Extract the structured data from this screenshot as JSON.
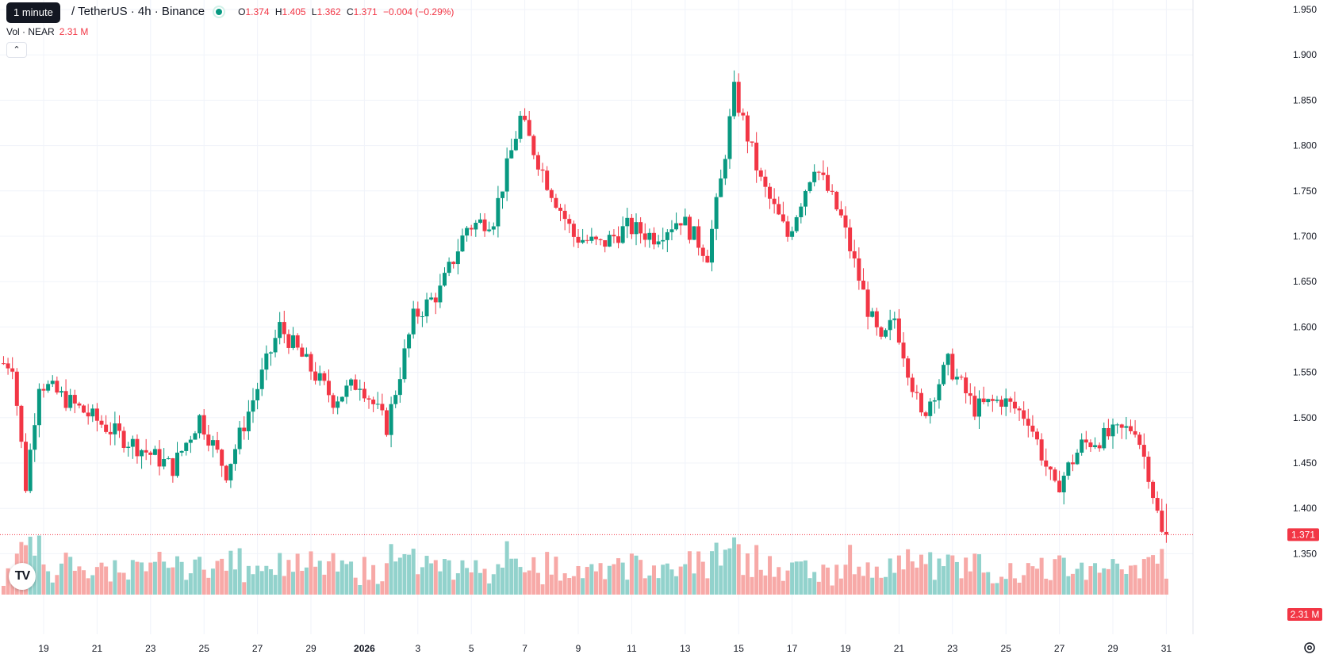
{
  "legend": {
    "interval_tooltip": "1 minute",
    "symbol": "/ TetherUS · 4h · Binance",
    "status_color": "#089981",
    "ohlc": {
      "o_label": "O",
      "o": "1.374",
      "h_label": "H",
      "h": "1.405",
      "l_label": "L",
      "l": "1.362",
      "c_label": "C",
      "c": "1.371",
      "change": "−0.004 (−0.29%)"
    },
    "volume_label": "Vol · NEAR",
    "volume_value": "2.31 M",
    "collapse_icon": "chevron-up-icon"
  },
  "badges": {
    "last_price": "1.371",
    "last_volume": "2.31 M"
  },
  "colors": {
    "up": "#089981",
    "down": "#f23645",
    "up_volume": "#92d2cc",
    "down_volume": "#f7a9a7",
    "grid": "#f0f3fa"
  },
  "icons": {
    "logo": "tradingview-logo-icon",
    "settings": "settings-gear-icon"
  },
  "chart_data": {
    "type": "candlestick",
    "interval": "4h",
    "y_axis": {
      "ticks": [
        "1.350",
        "1.400",
        "1.450",
        "1.500",
        "1.550",
        "1.600",
        "1.650",
        "1.700",
        "1.750",
        "1.800",
        "1.850",
        "1.900",
        "1.950"
      ],
      "range": [
        1.33,
        1.96
      ]
    },
    "x_axis": {
      "ticks": [
        "19",
        "21",
        "23",
        "25",
        "27",
        "29",
        "2026",
        "3",
        "5",
        "7",
        "9",
        "11",
        "13",
        "15",
        "17",
        "19",
        "21",
        "23",
        "25",
        "27",
        "29",
        "31"
      ],
      "bold_tick": "2026"
    },
    "last_price": 1.371,
    "grid": true,
    "key_points": [
      {
        "x": "Dec 18",
        "price": 1.56
      },
      {
        "x": "Dec 18",
        "price": 1.425
      },
      {
        "x": "Dec 19",
        "price": 1.54
      },
      {
        "x": "Dec 22",
        "price": 1.48
      },
      {
        "x": "Dec 24",
        "price": 1.445
      },
      {
        "x": "Dec 25",
        "price": 1.5
      },
      {
        "x": "Dec 26",
        "price": 1.44
      },
      {
        "x": "Dec 28",
        "price": 1.6
      },
      {
        "x": "Dec 30",
        "price": 1.52
      },
      {
        "x": "Dec 31",
        "price": 1.54
      },
      {
        "x": "Jan 1",
        "price": 1.49
      },
      {
        "x": "Jan 2",
        "price": 1.61
      },
      {
        "x": "Jan 3",
        "price": 1.64
      },
      {
        "x": "Jan 4",
        "price": 1.71
      },
      {
        "x": "Jan 5",
        "price": 1.72
      },
      {
        "x": "Jan 6",
        "price": 1.83
      },
      {
        "x": "Jan 7",
        "price": 1.76
      },
      {
        "x": "Jan 8",
        "price": 1.7
      },
      {
        "x": "Jan 9",
        "price": 1.69
      },
      {
        "x": "Jan 10",
        "price": 1.71
      },
      {
        "x": "Jan 11",
        "price": 1.7
      },
      {
        "x": "Jan 12",
        "price": 1.72
      },
      {
        "x": "Jan 13",
        "price": 1.68
      },
      {
        "x": "Jan 13",
        "price": 1.76
      },
      {
        "x": "Jan 14",
        "price": 1.86
      },
      {
        "x": "Jan 15",
        "price": 1.76
      },
      {
        "x": "Jan 16",
        "price": 1.7
      },
      {
        "x": "Jan 17",
        "price": 1.78
      },
      {
        "x": "Jan 18",
        "price": 1.72
      },
      {
        "x": "Jan 19",
        "price": 1.62
      },
      {
        "x": "Jan 19",
        "price": 1.58
      },
      {
        "x": "Jan 20",
        "price": 1.61
      },
      {
        "x": "Jan 21",
        "price": 1.5
      },
      {
        "x": "Jan 22",
        "price": 1.56
      },
      {
        "x": "Jan 23",
        "price": 1.51
      },
      {
        "x": "Jan 24",
        "price": 1.52
      },
      {
        "x": "Jan 25",
        "price": 1.5
      },
      {
        "x": "Jan 26",
        "price": 1.42
      },
      {
        "x": "Jan 27",
        "price": 1.47
      },
      {
        "x": "Jan 28",
        "price": 1.48
      },
      {
        "x": "Jan 29",
        "price": 1.49
      },
      {
        "x": "Jan 29",
        "price": 1.44
      },
      {
        "x": "Jan 30",
        "price": 1.371
      }
    ]
  }
}
